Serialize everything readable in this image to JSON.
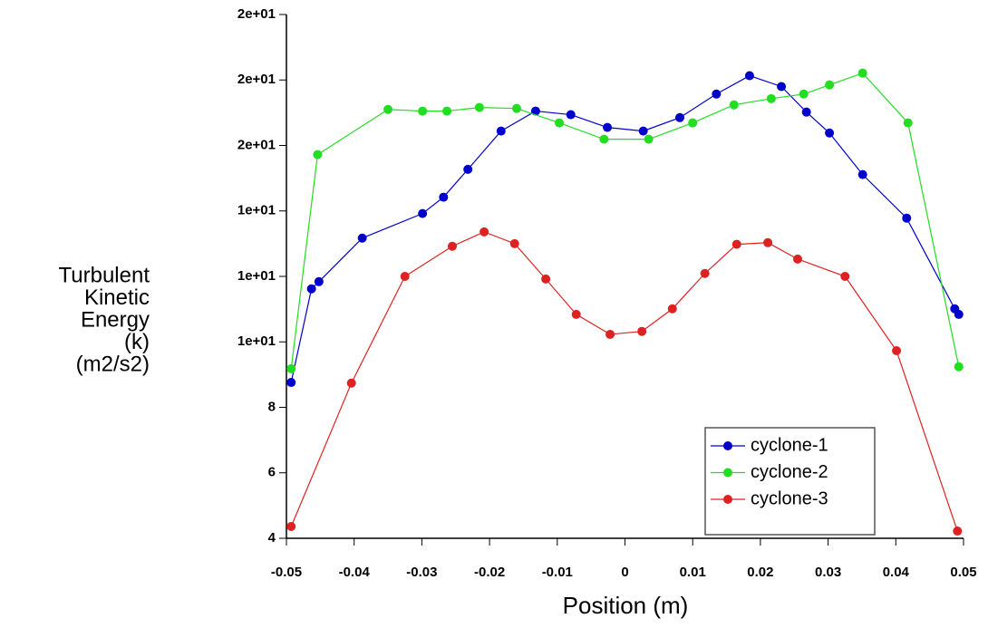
{
  "chart_data": {
    "type": "line",
    "x_label": "Position (m)",
    "y_label": [
      "Turbulent",
      "Kinetic",
      "Energy",
      "(k)",
      "(m2/s2)"
    ],
    "xlim": [
      -0.05,
      0.05
    ],
    "xticks": [
      -0.05,
      -0.04,
      -0.03,
      -0.02,
      -0.01,
      0,
      0.01,
      0.02,
      0.03,
      0.04,
      0.05
    ],
    "ylim": [
      4,
      20
    ],
    "yticks": [
      4,
      6,
      8,
      {
        "value": 10,
        "label": "1e+01"
      },
      {
        "value": 12,
        "label": "1e+01"
      },
      {
        "value": 14,
        "label": "1e+01"
      },
      {
        "value": 16,
        "label": "2e+01"
      },
      {
        "value": 18,
        "label": "2e+01"
      },
      {
        "value": 20,
        "label": "2e+01"
      }
    ],
    "legend": "lower right",
    "series": [
      {
        "name": "cyclone-1",
        "color": "#0000cc",
        "x": [
          -0.0493,
          -0.0463,
          -0.0452,
          -0.0388,
          -0.0299,
          -0.0268,
          -0.0232,
          -0.0183,
          -0.0132,
          -0.008,
          -0.0026,
          0.0027,
          0.0081,
          0.0135,
          0.0184,
          0.0231,
          0.0268,
          0.0302,
          0.0351,
          0.0416,
          0.0487,
          0.0493
        ],
        "values": [
          8.76,
          11.62,
          11.84,
          13.17,
          13.92,
          14.42,
          15.27,
          16.44,
          17.05,
          16.94,
          16.55,
          16.44,
          16.85,
          17.57,
          18.13,
          17.8,
          17.02,
          16.38,
          15.11,
          13.78,
          11.01,
          10.84
        ]
      },
      {
        "name": "cyclone-2",
        "color": "#22dd22",
        "x": [
          -0.0493,
          -0.0454,
          -0.035,
          -0.0299,
          -0.0263,
          -0.0215,
          -0.016,
          -0.0097,
          -0.0031,
          0.0035,
          0.01,
          0.0161,
          0.0216,
          0.0264,
          0.0302,
          0.0351,
          0.0418,
          0.0493
        ],
        "values": [
          9.18,
          15.72,
          17.1,
          17.05,
          17.05,
          17.16,
          17.13,
          16.69,
          16.19,
          16.19,
          16.69,
          17.24,
          17.43,
          17.57,
          17.85,
          18.21,
          16.69,
          9.24
        ]
      },
      {
        "name": "cyclone-3",
        "color": "#dd2222",
        "x": [
          -0.0493,
          -0.0404,
          -0.0325,
          -0.0255,
          -0.0208,
          -0.0163,
          -0.0117,
          -0.0072,
          -0.0022,
          0.0025,
          0.007,
          0.0118,
          0.0165,
          0.0211,
          0.0255,
          0.0325,
          0.0401,
          0.0491
        ],
        "values": [
          4.36,
          8.74,
          12.0,
          12.92,
          13.36,
          13.0,
          11.92,
          10.84,
          10.23,
          10.32,
          11.01,
          12.09,
          12.98,
          13.03,
          12.53,
          12.0,
          9.73,
          4.22
        ]
      }
    ]
  }
}
